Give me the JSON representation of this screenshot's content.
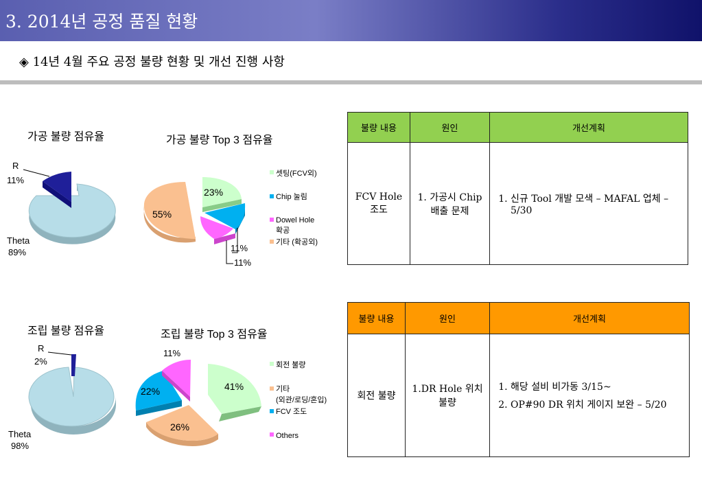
{
  "page": {
    "title": "3. 2014년  공정 품질 현황",
    "subtitle": "◈ 14년 4월 주요 공정 불량 현황 및 개선 진행 사항"
  },
  "colors": {
    "title_bar": "#5a5fb0",
    "table1_header": "#92d050",
    "table2_header": "#ff9900",
    "theta": "#b7dde8",
    "r": "#1f1f99",
    "green": "#ccffcc",
    "cyan": "#00b0f0",
    "magenta": "#ff66ff",
    "orange": "#fac090"
  },
  "chart_data": [
    {
      "type": "pie",
      "title": "가공 불량 점유율",
      "labels": [
        "R",
        "Theta"
      ],
      "values": [
        11,
        89
      ],
      "value_labels": [
        "11%",
        "89%"
      ]
    },
    {
      "type": "pie",
      "title": "가공 불량 Top 3 점유율",
      "labels": [
        "셋팅(FCV외)",
        "Chip 눌림",
        "Dowel Hole 확공",
        "기타 (확공외)"
      ],
      "values": [
        23,
        11,
        11,
        55
      ],
      "value_labels": [
        "23%",
        "11%",
        "11%",
        "55%"
      ],
      "legend": "right"
    },
    {
      "type": "pie",
      "title": "조립 불량 점유율",
      "labels": [
        "R",
        "Theta"
      ],
      "values": [
        2,
        98
      ],
      "value_labels": [
        "2%",
        "98%"
      ]
    },
    {
      "type": "pie",
      "title": "조립 불량 Top 3 점유율",
      "labels": [
        "회전 불량",
        "기타 (외관/로딩/혼입)",
        "FCV 조도",
        "Others"
      ],
      "values": [
        41,
        26,
        22,
        11
      ],
      "value_labels": [
        "41%",
        "26%",
        "22%",
        "11%"
      ],
      "legend": "right"
    }
  ],
  "legend1": [
    "셋팅(FCV외)",
    "Chip 눌림",
    "Dowel Hole",
    "확공",
    "기타 (확공외)"
  ],
  "legend2": [
    "회전 불량",
    "기타",
    "(외관/로딩/혼입)",
    "FCV 조도",
    "Others"
  ],
  "table1": {
    "headers": [
      "불량 내용",
      "원인",
      "개선계획"
    ],
    "item": "FCV Hole 조도",
    "cause": "1. 가공시 Chip 배출 문제",
    "plans": [
      "신규 Tool 개발 모색 – MAFAL 업체  – 5/30"
    ]
  },
  "table2": {
    "headers": [
      "불량 내용",
      "원인",
      "개선계획"
    ],
    "item": "회전 불량",
    "cause": "1.DR Hole 위치 불량",
    "plans": [
      "해당 설비 비가동 3/15~",
      "OP#90 DR 위치 게이지 보완 – 5/20"
    ]
  }
}
